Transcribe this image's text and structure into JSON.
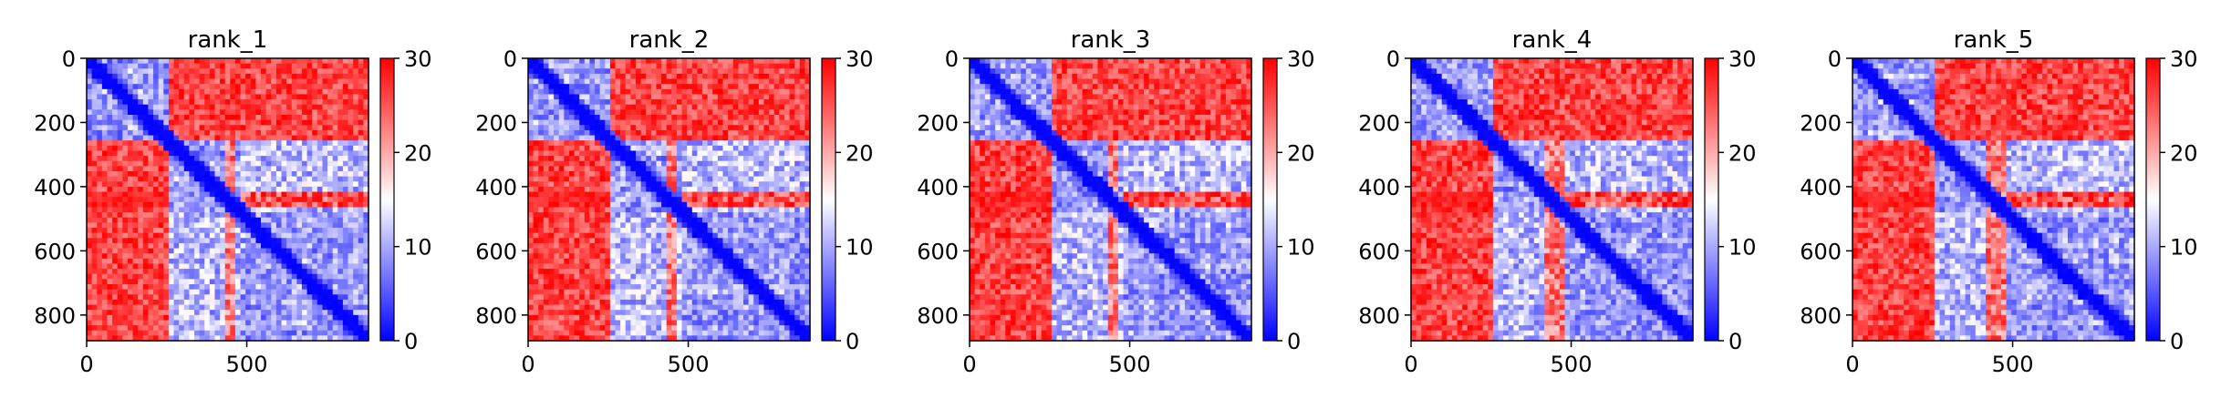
{
  "chart_data": [
    {
      "type": "heatmap",
      "title": "rank_1",
      "matrix_size": 880,
      "x_ticks": [
        "0",
        "500"
      ],
      "x_tick_values": [
        0,
        500
      ],
      "y_ticks": [
        "0",
        "200",
        "400",
        "600",
        "800"
      ],
      "y_tick_values": [
        0,
        200,
        400,
        600,
        800
      ],
      "xlim": [
        0,
        880
      ],
      "ylim": [
        880,
        0
      ],
      "colorbar": {
        "min": 0,
        "max": 30,
        "ticks": [
          "0",
          "10",
          "20",
          "30"
        ],
        "tick_values": [
          0,
          10,
          20,
          30
        ],
        "cmap": "bwr"
      },
      "blocks": [
        {
          "range": [
            0,
            250
          ],
          "low_diag": true
        },
        {
          "range": [
            250,
            480
          ],
          "low_diag": true
        },
        {
          "range": [
            480,
            880
          ],
          "low_diag": true
        }
      ],
      "coupled_blocks": [
        [
          1,
          2
        ]
      ],
      "stripe_rows": [
        415,
        470
      ],
      "stripe_strength": 0.85,
      "gap_stripe": [
        430,
        470
      ]
    },
    {
      "type": "heatmap",
      "title": "rank_2",
      "matrix_size": 880,
      "x_ticks": [
        "0",
        "500"
      ],
      "x_tick_values": [
        0,
        500
      ],
      "y_ticks": [
        "0",
        "200",
        "400",
        "600",
        "800"
      ],
      "y_tick_values": [
        0,
        200,
        400,
        600,
        800
      ],
      "xlim": [
        0,
        880
      ],
      "ylim": [
        880,
        0
      ],
      "colorbar": {
        "min": 0,
        "max": 30,
        "ticks": [
          "0",
          "10",
          "20",
          "30"
        ],
        "tick_values": [
          0,
          10,
          20,
          30
        ],
        "cmap": "bwr"
      },
      "blocks": [
        {
          "range": [
            0,
            250
          ],
          "low_diag": true
        },
        {
          "range": [
            250,
            480
          ],
          "low_diag": true
        },
        {
          "range": [
            480,
            880
          ],
          "low_diag": true
        }
      ],
      "coupled_blocks": [
        [
          1,
          2
        ]
      ],
      "stripe_rows": [
        415,
        470
      ],
      "stripe_strength": 0.85,
      "gap_stripe": [
        430,
        470
      ]
    },
    {
      "type": "heatmap",
      "title": "rank_3",
      "matrix_size": 880,
      "x_ticks": [
        "0",
        "500"
      ],
      "x_tick_values": [
        0,
        500
      ],
      "y_ticks": [
        "0",
        "200",
        "400",
        "600",
        "800"
      ],
      "y_tick_values": [
        0,
        200,
        400,
        600,
        800
      ],
      "xlim": [
        0,
        880
      ],
      "ylim": [
        880,
        0
      ],
      "colorbar": {
        "min": 0,
        "max": 30,
        "ticks": [
          "0",
          "10",
          "20",
          "30"
        ],
        "tick_values": [
          0,
          10,
          20,
          30
        ],
        "cmap": "bwr"
      },
      "blocks": [
        {
          "range": [
            0,
            250
          ],
          "low_diag": true
        },
        {
          "range": [
            250,
            480
          ],
          "low_diag": true
        },
        {
          "range": [
            480,
            880
          ],
          "low_diag": true
        }
      ],
      "coupled_blocks": [
        [
          1,
          2
        ]
      ],
      "stripe_rows": [
        415,
        470
      ],
      "stripe_strength": 0.85,
      "gap_stripe": [
        430,
        470
      ]
    },
    {
      "type": "heatmap",
      "title": "rank_4",
      "matrix_size": 880,
      "x_ticks": [
        "0",
        "500"
      ],
      "x_tick_values": [
        0,
        500
      ],
      "y_ticks": [
        "0",
        "200",
        "400",
        "600",
        "800"
      ],
      "y_tick_values": [
        0,
        200,
        400,
        600,
        800
      ],
      "xlim": [
        0,
        880
      ],
      "ylim": [
        880,
        0
      ],
      "colorbar": {
        "min": 0,
        "max": 30,
        "ticks": [
          "0",
          "10",
          "20",
          "30"
        ],
        "tick_values": [
          0,
          10,
          20,
          30
        ],
        "cmap": "bwr"
      },
      "blocks": [
        {
          "range": [
            0,
            250
          ],
          "low_diag": true
        },
        {
          "range": [
            250,
            480
          ],
          "low_diag": true
        },
        {
          "range": [
            480,
            880
          ],
          "low_diag": true
        }
      ],
      "coupled_blocks": [
        [
          1,
          2
        ]
      ],
      "stripe_rows": [
        410,
        470
      ],
      "stripe_strength": 0.95,
      "gap_stripe": [
        415,
        480
      ]
    },
    {
      "type": "heatmap",
      "title": "rank_5",
      "matrix_size": 880,
      "x_ticks": [
        "0",
        "500"
      ],
      "x_tick_values": [
        0,
        500
      ],
      "y_ticks": [
        "0",
        "200",
        "400",
        "600",
        "800"
      ],
      "y_tick_values": [
        0,
        200,
        400,
        600,
        800
      ],
      "xlim": [
        0,
        880
      ],
      "ylim": [
        880,
        0
      ],
      "colorbar": {
        "min": 0,
        "max": 30,
        "ticks": [
          "0",
          "10",
          "20",
          "30"
        ],
        "tick_values": [
          0,
          10,
          20,
          30
        ],
        "cmap": "bwr"
      },
      "blocks": [
        {
          "range": [
            0,
            250
          ],
          "low_diag": true
        },
        {
          "range": [
            250,
            480
          ],
          "low_diag": true
        },
        {
          "range": [
            480,
            880
          ],
          "low_diag": true
        }
      ],
      "coupled_blocks": [
        [
          1,
          2
        ]
      ],
      "stripe_rows": [
        410,
        470
      ],
      "stripe_strength": 0.95,
      "gap_stripe": [
        415,
        480
      ]
    }
  ]
}
